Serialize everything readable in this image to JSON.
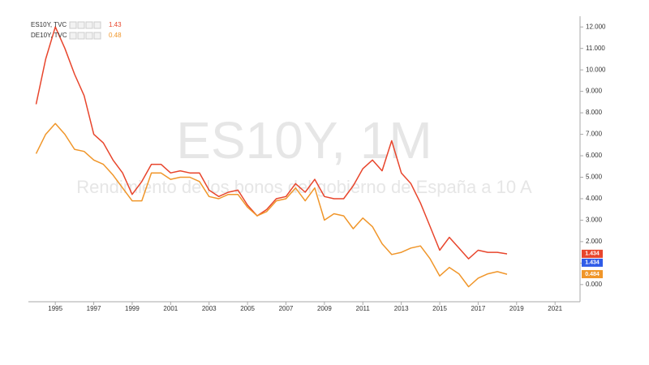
{
  "chart_data": {
    "type": "line",
    "watermark": "ES10Y, 1M",
    "watermark_subtitle": "Rendimiento de los bonos del gobierno de España a 10 A",
    "x": [
      1994.0,
      1994.5,
      1995.0,
      1995.5,
      1996.0,
      1996.5,
      1997.0,
      1997.5,
      1998.0,
      1998.5,
      1999.0,
      1999.5,
      2000.0,
      2000.5,
      2001.0,
      2001.5,
      2002.0,
      2002.5,
      2003.0,
      2003.5,
      2004.0,
      2004.5,
      2005.0,
      2005.5,
      2006.0,
      2006.5,
      2007.0,
      2007.5,
      2008.0,
      2008.5,
      2009.0,
      2009.5,
      2010.0,
      2010.5,
      2011.0,
      2011.5,
      2012.0,
      2012.5,
      2013.0,
      2013.5,
      2014.0,
      2014.5,
      2015.0,
      2015.5,
      2016.0,
      2016.5,
      2017.0,
      2017.5,
      2018.0,
      2018.5
    ],
    "series": [
      {
        "name": "ES10Y, TVC",
        "color": "#e8452c",
        "legend_value": 1.43,
        "values": [
          8.4,
          10.5,
          12.0,
          11.0,
          9.8,
          8.8,
          7.0,
          6.6,
          5.8,
          5.2,
          4.2,
          4.8,
          5.6,
          5.6,
          5.2,
          5.3,
          5.2,
          5.2,
          4.4,
          4.1,
          4.3,
          4.4,
          3.7,
          3.2,
          3.5,
          4.0,
          4.1,
          4.7,
          4.3,
          4.9,
          4.1,
          4.0,
          4.0,
          4.6,
          5.4,
          5.8,
          5.3,
          6.7,
          5.2,
          4.7,
          3.8,
          2.7,
          1.6,
          2.2,
          1.7,
          1.2,
          1.6,
          1.5,
          1.5,
          1.43
        ]
      },
      {
        "name": "DE10Y, TVC",
        "color": "#f0962a",
        "legend_value": 0.48,
        "values": [
          6.1,
          7.0,
          7.5,
          7.0,
          6.3,
          6.2,
          5.8,
          5.6,
          5.1,
          4.5,
          3.9,
          3.9,
          5.2,
          5.2,
          4.9,
          5.0,
          5.0,
          4.8,
          4.1,
          4.0,
          4.2,
          4.2,
          3.6,
          3.2,
          3.4,
          3.9,
          4.0,
          4.5,
          3.9,
          4.5,
          3.0,
          3.3,
          3.2,
          2.6,
          3.1,
          2.7,
          1.9,
          1.4,
          1.5,
          1.7,
          1.8,
          1.2,
          0.4,
          0.8,
          0.5,
          -0.1,
          0.3,
          0.5,
          0.6,
          0.48
        ]
      }
    ],
    "price_labels": [
      {
        "value": 1.434,
        "color": "#e8452c"
      },
      {
        "value": 1.434,
        "color": "#2f5be8"
      },
      {
        "value": 0.484,
        "color": "#f0962a"
      }
    ],
    "xlim": [
      1993.6,
      2022.3
    ],
    "xticks": [
      1995,
      1997,
      1999,
      2001,
      2003,
      2005,
      2007,
      2009,
      2011,
      2013,
      2015,
      2017,
      2019,
      2021
    ],
    "ylim": [
      -0.8,
      12.5
    ],
    "yticks": [
      {
        "value": 0,
        "label": "0.000"
      },
      {
        "value": 1,
        "label": "1.000"
      },
      {
        "value": 2,
        "label": "2.000"
      },
      {
        "value": 3,
        "label": "3.000"
      },
      {
        "value": 4,
        "label": "4.000"
      },
      {
        "value": 5,
        "label": "5.000"
      },
      {
        "value": 6,
        "label": "6.000"
      },
      {
        "value": 7,
        "label": "7.000"
      },
      {
        "value": 8,
        "label": "8.000"
      },
      {
        "value": 9,
        "label": "9.000"
      },
      {
        "value": 10,
        "label": "10.000"
      },
      {
        "value": 11,
        "label": "11.000"
      },
      {
        "value": 12,
        "label": "12.000"
      }
    ],
    "grid": false
  }
}
